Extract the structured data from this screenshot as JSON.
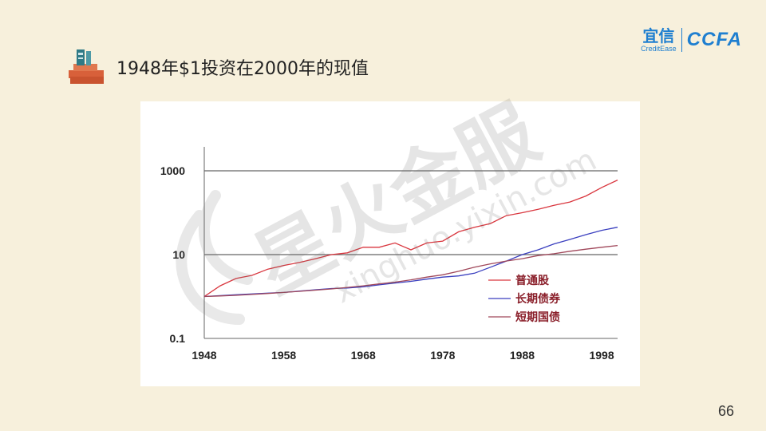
{
  "slide": {
    "title": "1948年$1投资在2000年的现值",
    "page_number": "66"
  },
  "logo": {
    "cn": "宜信",
    "en": "CreditEase",
    "ccfa": "CCFA"
  },
  "watermark": {
    "cn": "星火金服",
    "url": "xinghuo.yixin.com"
  },
  "colors": {
    "background": "#f7f0dc",
    "stocks": "#d9363e",
    "bonds": "#3a3fbf",
    "bills": "#a0475a",
    "grid": "#666666",
    "brand": "#1f7fd0"
  },
  "chart_data": {
    "type": "line",
    "title": "",
    "xlabel": "",
    "ylabel": "",
    "y_scale": "log",
    "ylim": [
      0.1,
      1000
    ],
    "xlim": [
      1948,
      2000
    ],
    "x_ticks": [
      "1948",
      "1958",
      "1968",
      "1978",
      "1988",
      "1998"
    ],
    "y_ticks": [
      "1000",
      "10",
      "0.1"
    ],
    "grid": "horizontal",
    "legend_position": "bottom-right",
    "x": [
      1948,
      1950,
      1952,
      1954,
      1956,
      1958,
      1960,
      1962,
      1964,
      1966,
      1968,
      1970,
      1972,
      1974,
      1976,
      1978,
      1980,
      1982,
      1984,
      1986,
      1988,
      1990,
      1992,
      1994,
      1996,
      1998,
      2000
    ],
    "series": [
      {
        "name": "普通股",
        "color": "#d9363e",
        "values": [
          1,
          1.8,
          2.7,
          3.2,
          4.5,
          5.5,
          6.5,
          8,
          10,
          11,
          15,
          15,
          19,
          13,
          19,
          21,
          35,
          45,
          55,
          85,
          100,
          120,
          150,
          180,
          250,
          400,
          600
        ]
      },
      {
        "name": "长期债券",
        "color": "#3a3fbf",
        "values": [
          1,
          1.05,
          1.1,
          1.15,
          1.2,
          1.25,
          1.35,
          1.45,
          1.55,
          1.6,
          1.7,
          1.9,
          2.1,
          2.3,
          2.6,
          2.9,
          3.1,
          3.6,
          5,
          7,
          10,
          13,
          18,
          23,
          30,
          38,
          45
        ]
      },
      {
        "name": "短期国债",
        "color": "#a0475a",
        "values": [
          1,
          1.03,
          1.07,
          1.12,
          1.18,
          1.25,
          1.33,
          1.42,
          1.52,
          1.65,
          1.8,
          2,
          2.2,
          2.5,
          2.9,
          3.3,
          4,
          5,
          6,
          7,
          8,
          9.5,
          10.5,
          12,
          13.5,
          15,
          16.5
        ]
      }
    ]
  }
}
